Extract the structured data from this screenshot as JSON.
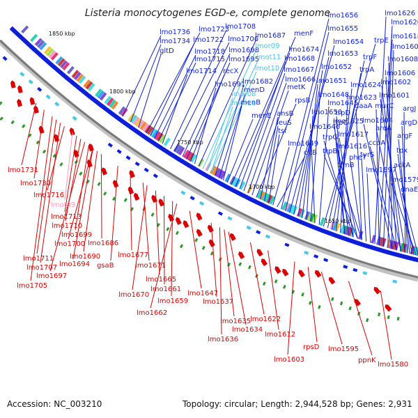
{
  "title": "Listeria monocytogenes EGD-e, complete genome",
  "footer": {
    "accession": "Accession: NC_003210",
    "summary": "Topology: circular; Length: 2,944,528 bp; Genes: 2,931"
  },
  "colors": {
    "forward": "#0d1fd9",
    "reverse": "#dd0000",
    "rna": "#44c8ee",
    "pseudo": "#ff99bb",
    "backbone": "#808080"
  },
  "kbp_ticks": [
    "1850 kbp",
    "1800 kbp",
    "1750 kbp",
    "1700 kbp",
    "1650 kbp"
  ],
  "labels_forward": [
    "lmo1736",
    "lmo1734",
    "gltD",
    "lmo1723",
    "lmo1722",
    "lmo1718",
    "lmo1715",
    "lmo1714",
    "lmo1708",
    "lmo1706",
    "lmo1698",
    "lmo1695",
    "recX",
    "lmo1691",
    "lmo1687",
    "lmor09",
    "lmot11",
    "lmot10",
    "lmo1682",
    "menD",
    "menB",
    "menE",
    "lmor08",
    "lmor21",
    "menF",
    "lmo1674",
    "lmo1668",
    "lmo1667",
    "lmo1666",
    "metK",
    "rpsB",
    "ansB",
    "leuS",
    "tsf",
    "lmo1649",
    "citB",
    "lmo1656",
    "lmo1655",
    "lmo1654",
    "lmo1653",
    "lmo1652",
    "lmo1651",
    "lmo1650",
    "lmo1648",
    "lmo1646",
    "lmo1645",
    "trpE",
    "trpF",
    "trpA",
    "lmo1624",
    "lmo1623",
    "trpD",
    "trpC",
    "trpG",
    "trpB",
    "trmB",
    "lmo1625",
    "lmo1617",
    "lmo1616",
    "pheT",
    "tyrS",
    "lmo1597",
    "lmo1626",
    "lmo1620",
    "lmo1618",
    "lmo1609",
    "lmo1608",
    "lmo1606",
    "lmo1602",
    "lmo1601",
    "daaA",
    "murC",
    "lmo1604",
    "ccpA",
    "aroA",
    "argJ",
    "argD",
    "argF",
    "tpx",
    "ackA",
    "lmo1579",
    "dnaE"
  ],
  "labels_reverse": [
    "lmo1731",
    "lmo1730",
    "lmo1716",
    "lmot39",
    "lmo1713",
    "lmo1710",
    "lmo1699",
    "lmo1700",
    "lmo1686",
    "lmo1711",
    "lmo1690",
    "lmo1707",
    "lmo1694",
    "lmo1697",
    "lmo1705",
    "gsaB",
    "lmo1677",
    "lmo1671",
    "lmo1665",
    "lmo1670",
    "lmo1661",
    "lmo1659",
    "lmo1647",
    "lmo1662",
    "lmo1637",
    "lmo1635",
    "lmo1634",
    "lmo1636",
    "lmo1622",
    "lmo1612",
    "lmo1603",
    "rpsD",
    "lmo1595",
    "ppnK",
    "lmo1580"
  ]
}
